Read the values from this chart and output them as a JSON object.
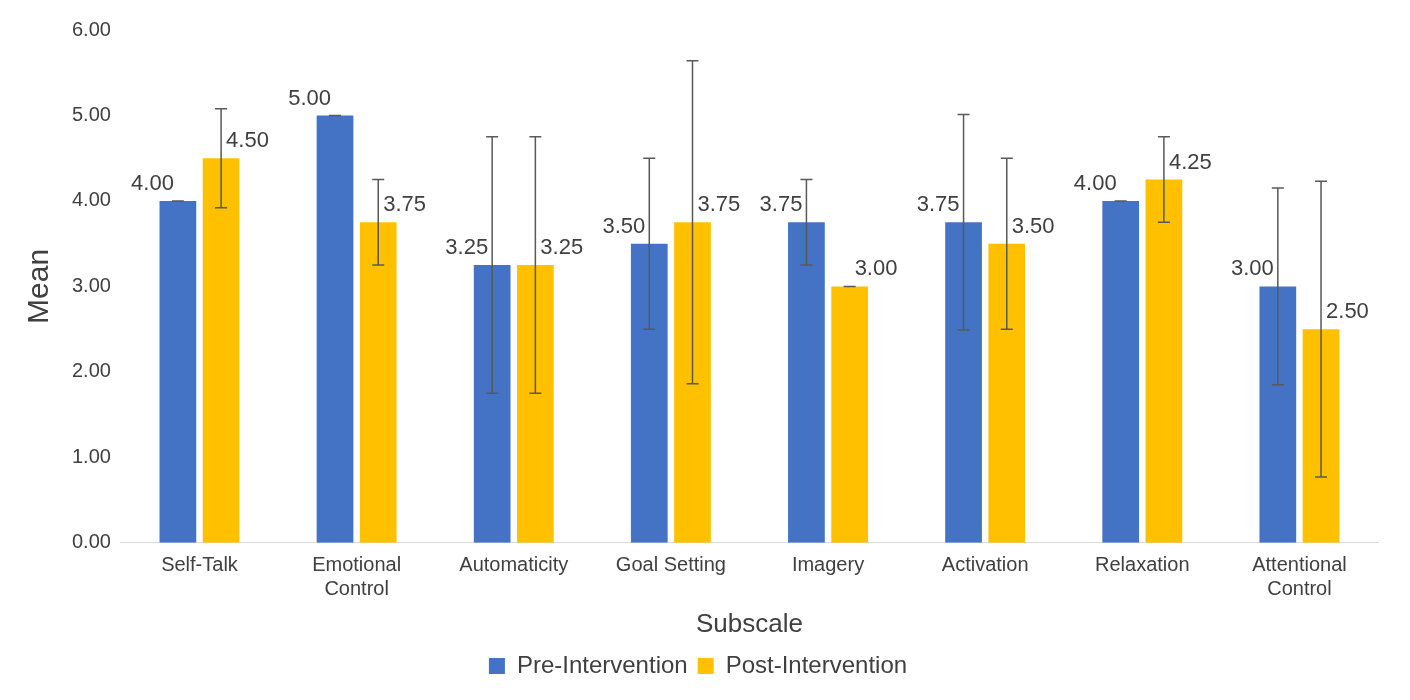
{
  "chart_data": {
    "type": "bar",
    "xlabel": "Subscale",
    "ylabel": "Mean",
    "categories": [
      "Self-Talk",
      "Emotional Control",
      "Automaticity",
      "Goal Setting",
      "Imagery",
      "Activation",
      "Relaxation",
      "Attentional Control"
    ],
    "series": [
      {
        "name": "Pre-Intervention",
        "color": "#4472c4",
        "values": [
          4.0,
          5.0,
          3.25,
          3.5,
          3.75,
          3.75,
          4.0,
          3.0
        ],
        "errors": [
          0,
          0,
          1.5,
          1.0,
          0.5,
          1.26,
          0,
          1.15
        ],
        "value_labels": [
          "4.00",
          "5.00",
          "3.25",
          "3.50",
          "3.75",
          "3.75",
          "4.00",
          "3.00"
        ]
      },
      {
        "name": "Post-Intervention",
        "color": "#ffc000",
        "values": [
          4.5,
          3.75,
          3.25,
          3.75,
          3.0,
          3.5,
          4.25,
          2.5
        ],
        "errors": [
          0.58,
          0.5,
          1.5,
          1.89,
          0,
          1.0,
          0.5,
          1.73
        ],
        "value_labels": [
          "4.50",
          "3.75",
          "3.25",
          "3.75",
          "3.00",
          "3.50",
          "4.25",
          "2.50"
        ]
      }
    ],
    "ylim": [
      0,
      6
    ],
    "yticks": [
      {
        "value": 0,
        "label": "0.00"
      },
      {
        "value": 1,
        "label": "1.00"
      },
      {
        "value": 2,
        "label": "2.00"
      },
      {
        "value": 3,
        "label": "3.00"
      },
      {
        "value": 4,
        "label": "4.00"
      },
      {
        "value": 5,
        "label": "5.00"
      },
      {
        "value": 6,
        "label": "6.00"
      }
    ],
    "grid": false,
    "legend": "bottom"
  }
}
